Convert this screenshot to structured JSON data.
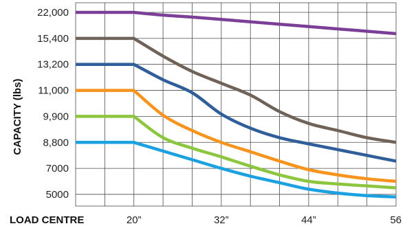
{
  "chart_data": {
    "type": "line",
    "xlabel": "LOAD CENTRE",
    "ylabel": "CAPACITY (lbs)",
    "x_ticks": [
      "20”",
      "32”",
      "44”",
      "56"
    ],
    "x_tick_values": [
      20,
      32,
      44,
      56
    ],
    "xlim": [
      12,
      56
    ],
    "y_ticks": [
      "22,000",
      "15,400",
      "13,200",
      "11,000",
      "9,900",
      "8,800",
      "7000",
      "5000"
    ],
    "y_scale": "categorical (evenly spaced capacity labels)",
    "grid": true,
    "legend": "none",
    "series": [
      {
        "color": "#7B3F98",
        "x": [
          12,
          20,
          24,
          28,
          32,
          36,
          40,
          44,
          48,
          52,
          56
        ],
        "y": [
          22000,
          22000,
          21300,
          20800,
          20200,
          19600,
          19000,
          18400,
          17800,
          17200,
          16600
        ]
      },
      {
        "color": "#6E6259",
        "x": [
          12,
          20,
          24,
          28,
          32,
          36,
          40,
          44,
          48,
          52,
          56
        ],
        "y": [
          15400,
          15400,
          13900,
          12600,
          11600,
          10800,
          10100,
          9600,
          9300,
          9000,
          8800
        ]
      },
      {
        "color": "#2F5E9A",
        "x": [
          12,
          20,
          24,
          28,
          32,
          36,
          40,
          44,
          48,
          52,
          56
        ],
        "y": [
          13200,
          13200,
          11900,
          10900,
          10000,
          9400,
          9000,
          8700,
          8300,
          7900,
          7500
        ]
      },
      {
        "color": "#F7941D",
        "x": [
          12,
          20,
          24,
          28,
          32,
          36,
          40,
          44,
          48,
          52,
          56
        ],
        "y": [
          11000,
          11000,
          9950,
          9300,
          8800,
          8150,
          7500,
          6900,
          6500,
          6200,
          6000
        ]
      },
      {
        "color": "#8CC63F",
        "x": [
          12,
          20,
          24,
          28,
          32,
          36,
          40,
          44,
          48,
          52,
          56
        ],
        "y": [
          9900,
          9900,
          9000,
          8400,
          7800,
          7150,
          6500,
          6000,
          5800,
          5650,
          5500
        ]
      },
      {
        "color": "#1BA1E2",
        "x": [
          12,
          20,
          24,
          28,
          32,
          36,
          40,
          44,
          48,
          52,
          56
        ],
        "y": [
          8800,
          8800,
          8200,
          7600,
          7000,
          6400,
          5900,
          5400,
          5100,
          4900,
          4800
        ]
      }
    ]
  }
}
